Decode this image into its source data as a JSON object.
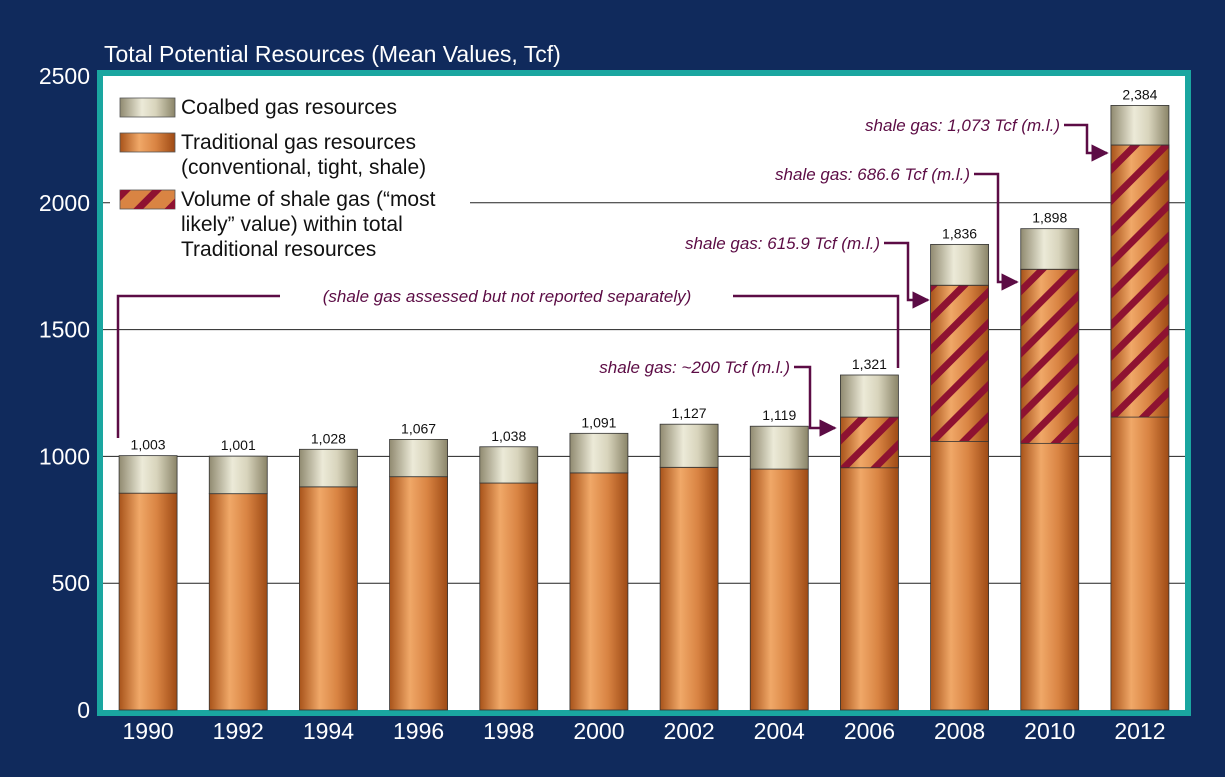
{
  "chart_data": {
    "type": "bar",
    "stacked": true,
    "title": "",
    "ylabel": "Total Potential Resources (Mean Values, Tcf)",
    "xlabel": "",
    "ylim": [
      0,
      2500
    ],
    "yticks": [
      0,
      500,
      1000,
      1500,
      2000,
      2500
    ],
    "grid": true,
    "legend_position": "top-left",
    "categories": [
      "1990",
      "1992",
      "1994",
      "1996",
      "1998",
      "2000",
      "2002",
      "2004",
      "2006",
      "2008",
      "2010",
      "2012"
    ],
    "series": [
      {
        "name": "Traditional gas resources (conventional, tight, shale)",
        "values": [
          855,
          853,
          880,
          920,
          895,
          935,
          957,
          950,
          1155,
          1675,
          1738,
          2228
        ]
      },
      {
        "name": "Coalbed gas resources",
        "values": [
          148,
          148,
          148,
          147,
          143,
          156,
          170,
          169,
          166,
          161,
          160,
          156
        ]
      }
    ],
    "shale_overlay": {
      "name": "Volume of shale gas (“most likely” value) within total Traditional resources",
      "values": [
        null,
        null,
        null,
        null,
        null,
        null,
        null,
        null,
        200,
        615.9,
        686.6,
        1073
      ]
    },
    "totals": [
      "1,003",
      "1,001",
      "1,028",
      "1,067",
      "1,038",
      "1,091",
      "1,127",
      "1,119",
      "1,321",
      "1,836",
      "1,898",
      "2,384"
    ],
    "annotations": [
      "(shale gas assessed but not reported separately)",
      "shale gas: ~200 Tcf (m.l.)",
      "shale gas: 615.9 Tcf (m.l.)",
      "shale gas: 686.6 Tcf (m.l.)",
      "shale gas: 1,073 Tcf (m.l.)"
    ],
    "colors": {
      "background": "#102a5c",
      "plot_border": "#1aa6a0",
      "traditional": "#cc7430",
      "coalbed": "#c6c1a3",
      "hatch": "#8e1231",
      "annotation": "#5c0c45"
    }
  }
}
